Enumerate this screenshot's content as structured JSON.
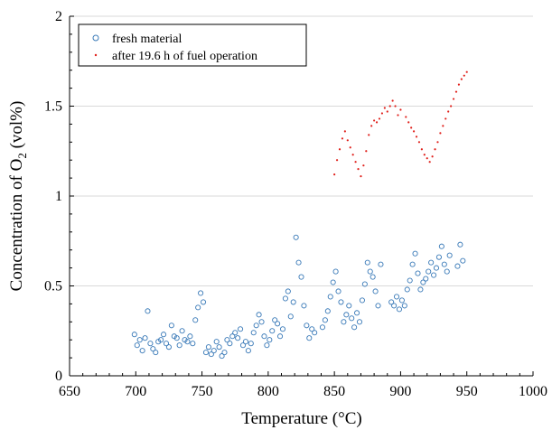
{
  "chart_data": {
    "type": "scatter",
    "xlabel": "Temperature (°C)",
    "ylabel_prefix": "Concentration of O",
    "ylabel_sub": "2",
    "ylabel_suffix": " (vol%)",
    "xlim": [
      650,
      1000
    ],
    "ylim": [
      0,
      2
    ],
    "x_ticks": [
      650,
      700,
      750,
      800,
      850,
      900,
      950,
      1000
    ],
    "y_ticks": [
      0,
      0.5,
      1,
      1.5,
      2
    ],
    "y_tick_labels": [
      "0",
      "0.5",
      "1",
      "1.5",
      "2"
    ],
    "grid": "horizontal",
    "legend_position": "top-left",
    "colors": {
      "fresh": "#3a7ab8",
      "after": "#e0201b",
      "grid": "#d9d9d9",
      "axis": "#000000"
    },
    "series": [
      {
        "name": "fresh material",
        "marker": "open-circle",
        "points": [
          [
            699,
            0.23
          ],
          [
            701,
            0.17
          ],
          [
            703,
            0.2
          ],
          [
            705,
            0.14
          ],
          [
            707,
            0.21
          ],
          [
            709,
            0.36
          ],
          [
            711,
            0.18
          ],
          [
            713,
            0.15
          ],
          [
            715,
            0.13
          ],
          [
            717,
            0.19
          ],
          [
            719,
            0.2
          ],
          [
            721,
            0.23
          ],
          [
            723,
            0.18
          ],
          [
            725,
            0.16
          ],
          [
            727,
            0.28
          ],
          [
            729,
            0.22
          ],
          [
            731,
            0.21
          ],
          [
            733,
            0.17
          ],
          [
            735,
            0.25
          ],
          [
            737,
            0.2
          ],
          [
            739,
            0.19
          ],
          [
            741,
            0.22
          ],
          [
            743,
            0.18
          ],
          [
            745,
            0.31
          ],
          [
            747,
            0.38
          ],
          [
            749,
            0.46
          ],
          [
            751,
            0.41
          ],
          [
            753,
            0.13
          ],
          [
            755,
            0.16
          ],
          [
            757,
            0.12
          ],
          [
            759,
            0.14
          ],
          [
            761,
            0.19
          ],
          [
            763,
            0.16
          ],
          [
            765,
            0.11
          ],
          [
            767,
            0.13
          ],
          [
            769,
            0.2
          ],
          [
            771,
            0.18
          ],
          [
            773,
            0.22
          ],
          [
            775,
            0.24
          ],
          [
            777,
            0.21
          ],
          [
            779,
            0.26
          ],
          [
            781,
            0.17
          ],
          [
            783,
            0.19
          ],
          [
            785,
            0.14
          ],
          [
            787,
            0.18
          ],
          [
            789,
            0.24
          ],
          [
            791,
            0.28
          ],
          [
            793,
            0.34
          ],
          [
            795,
            0.3
          ],
          [
            797,
            0.22
          ],
          [
            799,
            0.17
          ],
          [
            801,
            0.2
          ],
          [
            803,
            0.25
          ],
          [
            805,
            0.31
          ],
          [
            807,
            0.29
          ],
          [
            809,
            0.22
          ],
          [
            811,
            0.26
          ],
          [
            813,
            0.43
          ],
          [
            815,
            0.47
          ],
          [
            817,
            0.33
          ],
          [
            819,
            0.41
          ],
          [
            821,
            0.77
          ],
          [
            823,
            0.63
          ],
          [
            825,
            0.55
          ],
          [
            827,
            0.39
          ],
          [
            829,
            0.28
          ],
          [
            831,
            0.21
          ],
          [
            833,
            0.26
          ],
          [
            835,
            0.24
          ],
          [
            841,
            0.27
          ],
          [
            843,
            0.31
          ],
          [
            845,
            0.36
          ],
          [
            847,
            0.44
          ],
          [
            849,
            0.52
          ],
          [
            851,
            0.58
          ],
          [
            853,
            0.47
          ],
          [
            855,
            0.41
          ],
          [
            857,
            0.3
          ],
          [
            859,
            0.34
          ],
          [
            861,
            0.39
          ],
          [
            863,
            0.32
          ],
          [
            865,
            0.27
          ],
          [
            867,
            0.35
          ],
          [
            869,
            0.3
          ],
          [
            871,
            0.42
          ],
          [
            873,
            0.51
          ],
          [
            875,
            0.63
          ],
          [
            877,
            0.58
          ],
          [
            879,
            0.55
          ],
          [
            881,
            0.47
          ],
          [
            883,
            0.39
          ],
          [
            885,
            0.62
          ],
          [
            893,
            0.41
          ],
          [
            895,
            0.39
          ],
          [
            897,
            0.44
          ],
          [
            899,
            0.37
          ],
          [
            901,
            0.42
          ],
          [
            903,
            0.39
          ],
          [
            905,
            0.48
          ],
          [
            907,
            0.53
          ],
          [
            909,
            0.62
          ],
          [
            911,
            0.68
          ],
          [
            913,
            0.57
          ],
          [
            915,
            0.48
          ],
          [
            917,
            0.52
          ],
          [
            919,
            0.54
          ],
          [
            921,
            0.58
          ],
          [
            923,
            0.63
          ],
          [
            925,
            0.56
          ],
          [
            927,
            0.6
          ],
          [
            929,
            0.66
          ],
          [
            931,
            0.72
          ],
          [
            933,
            0.62
          ],
          [
            935,
            0.58
          ],
          [
            937,
            0.67
          ],
          [
            943,
            0.61
          ],
          [
            945,
            0.73
          ],
          [
            947,
            0.64
          ]
        ]
      },
      {
        "name": "after 19.6 h of fuel operation",
        "marker": "small-dot",
        "points": [
          [
            850,
            1.12
          ],
          [
            852,
            1.2
          ],
          [
            854,
            1.26
          ],
          [
            856,
            1.32
          ],
          [
            858,
            1.36
          ],
          [
            860,
            1.31
          ],
          [
            862,
            1.27
          ],
          [
            864,
            1.23
          ],
          [
            866,
            1.19
          ],
          [
            868,
            1.15
          ],
          [
            870,
            1.11
          ],
          [
            872,
            1.17
          ],
          [
            874,
            1.25
          ],
          [
            876,
            1.34
          ],
          [
            878,
            1.39
          ],
          [
            880,
            1.42
          ],
          [
            882,
            1.41
          ],
          [
            884,
            1.43
          ],
          [
            886,
            1.46
          ],
          [
            888,
            1.49
          ],
          [
            890,
            1.47
          ],
          [
            892,
            1.5
          ],
          [
            894,
            1.53
          ],
          [
            896,
            1.5
          ],
          [
            898,
            1.45
          ],
          [
            900,
            1.48
          ],
          [
            904,
            1.44
          ],
          [
            906,
            1.41
          ],
          [
            908,
            1.38
          ],
          [
            910,
            1.36
          ],
          [
            912,
            1.33
          ],
          [
            914,
            1.3
          ],
          [
            916,
            1.26
          ],
          [
            918,
            1.23
          ],
          [
            920,
            1.21
          ],
          [
            922,
            1.19
          ],
          [
            924,
            1.22
          ],
          [
            926,
            1.26
          ],
          [
            928,
            1.3
          ],
          [
            930,
            1.35
          ],
          [
            932,
            1.39
          ],
          [
            934,
            1.43
          ],
          [
            936,
            1.47
          ],
          [
            938,
            1.5
          ],
          [
            940,
            1.54
          ],
          [
            942,
            1.58
          ],
          [
            944,
            1.62
          ],
          [
            946,
            1.65
          ],
          [
            948,
            1.67
          ],
          [
            950,
            1.69
          ]
        ]
      }
    ]
  }
}
